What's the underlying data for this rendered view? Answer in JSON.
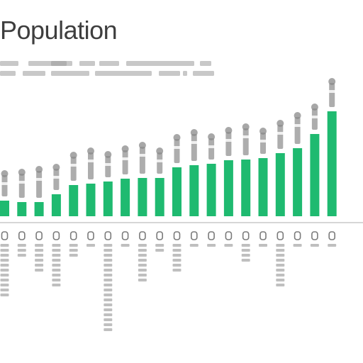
{
  "chart_data": {
    "type": "bar",
    "title": "Population",
    "subtitle": "",
    "xlabel": "",
    "ylabel": "",
    "categories": [
      "",
      "",
      "",
      "",
      "",
      "",
      "",
      "",
      "",
      "",
      "",
      "",
      "",
      "",
      "",
      "",
      "",
      "",
      "",
      ""
    ],
    "values": [
      22,
      20,
      20,
      31,
      44,
      46,
      49,
      53,
      54,
      54,
      69,
      72,
      74,
      79,
      80,
      82,
      89,
      96,
      116,
      148
    ],
    "ylim": [
      0,
      180
    ],
    "grid": false,
    "legend": "none",
    "colors": {
      "bar": "#1fba70",
      "axis": "#c8c8c8",
      "glyph": "#8a8a8a",
      "text": "#5a5a5a"
    }
  }
}
